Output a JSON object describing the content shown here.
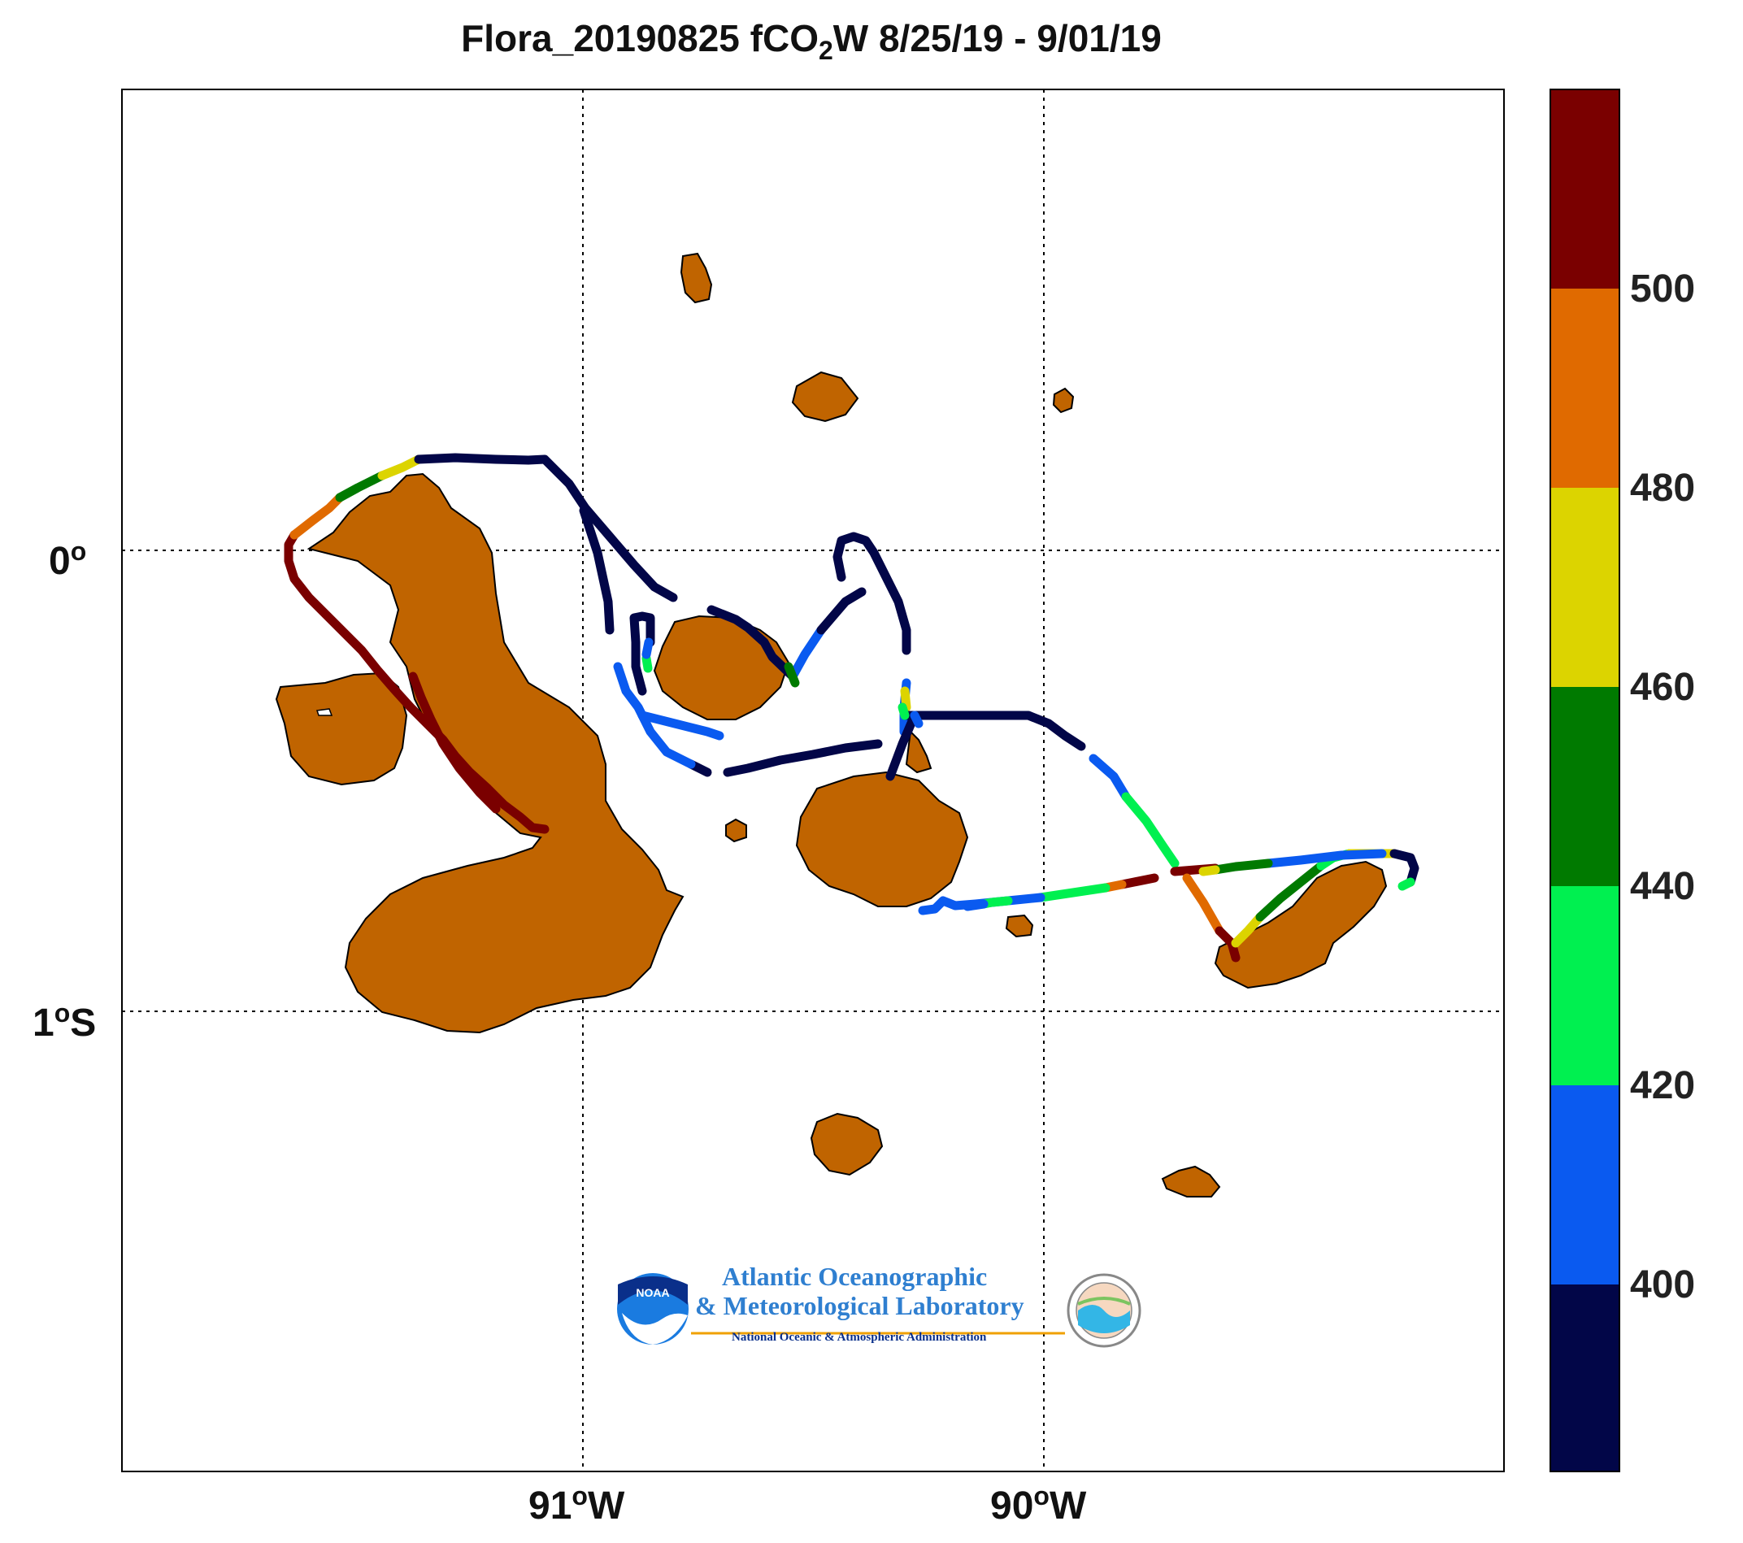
{
  "title": {
    "prefix": "Flora_20190825 fCO",
    "sub": "2",
    "suffix": "W 8/25/19 - 9/01/19"
  },
  "axes": {
    "lat_labels": [
      {
        "text": "0",
        "sup": "o",
        "suffix": ""
      },
      {
        "text": "1",
        "sup": "o",
        "suffix": "S"
      }
    ],
    "lon_labels": [
      {
        "text": "91",
        "sup": "o",
        "suffix": "W"
      },
      {
        "text": "90",
        "sup": "o",
        "suffix": "W"
      }
    ]
  },
  "colorbar": {
    "labels": [
      "500",
      "480",
      "460",
      "440",
      "420",
      "400"
    ],
    "colors": [
      "#7a0000",
      "#e06a00",
      "#dcd400",
      "#007a00",
      "#00f050",
      "#0a5af0",
      "#020648"
    ]
  },
  "logo": {
    "line1": "Atlantic Oceanographic",
    "line2": "& Meteorological Laboratory",
    "line3": "National Oceanic & Atmospheric Administration",
    "badge": "NOAA"
  }
}
